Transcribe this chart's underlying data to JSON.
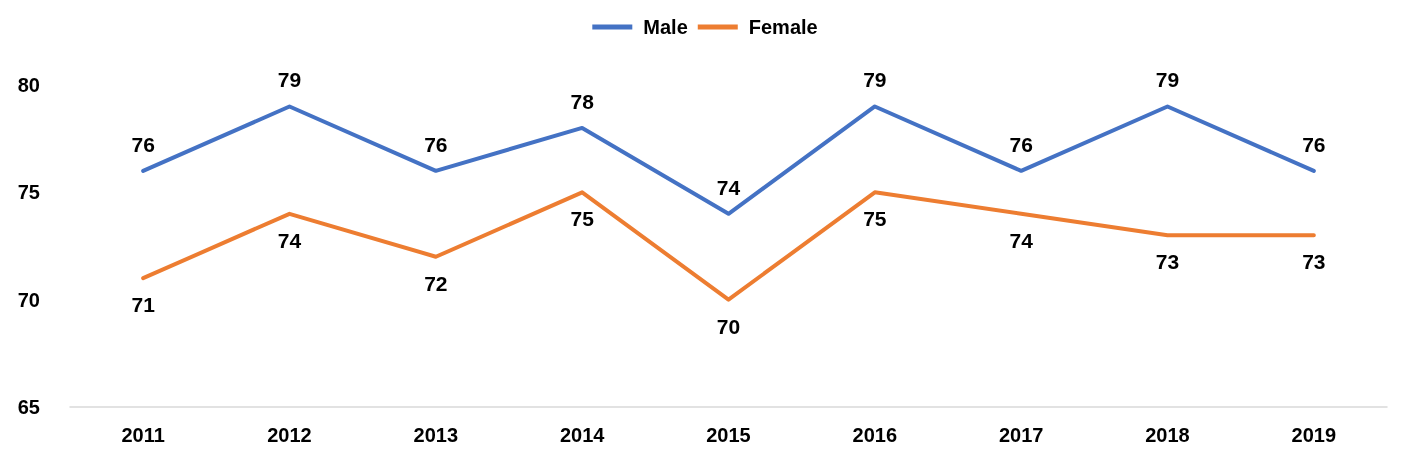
{
  "chart_data": {
    "type": "line",
    "categories": [
      "2011",
      "2012",
      "2013",
      "2014",
      "2015",
      "2016",
      "2017",
      "2018",
      "2019"
    ],
    "series": [
      {
        "name": "Male",
        "color": "#4472c4",
        "values": [
          76,
          79,
          76,
          78,
          74,
          79,
          76,
          79,
          76
        ]
      },
      {
        "name": "Female",
        "color": "#ed7d31",
        "values": [
          71,
          74,
          72,
          75,
          70,
          75,
          74,
          73,
          73
        ]
      }
    ],
    "ylim": [
      65,
      80
    ],
    "yticks": [
      65,
      70,
      75,
      80
    ],
    "data_labels": true,
    "legend": "top",
    "marker": "none",
    "line_style": "solid"
  }
}
